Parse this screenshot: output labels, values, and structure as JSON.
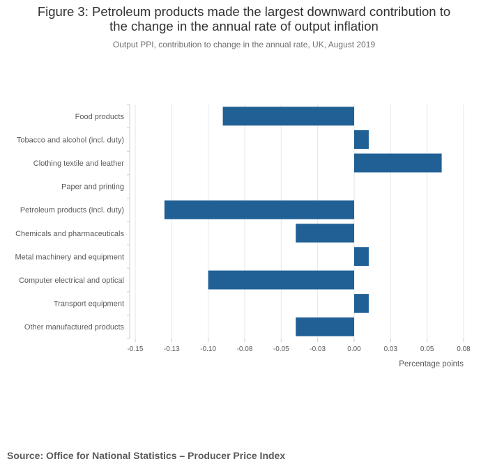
{
  "header": {
    "title_line1": "Figure 3: Petroleum products made the largest downward contribution to",
    "title_line2": "the change in the annual rate of output inflation",
    "subtitle": "Output PPI, contribution to change in the annual rate, UK, August 2019"
  },
  "chart_data": {
    "type": "bar",
    "orientation": "horizontal",
    "title": "Figure 3: Petroleum products made the largest downward contribution to the change in the annual rate of output inflation",
    "subtitle": "Output PPI, contribution to change in the annual rate, UK, August 2019",
    "categories": [
      "Food products",
      "Tobacco and alcohol (incl. duty)",
      "Clothing textile and leather",
      "Paper and printing",
      "Petroleum products (incl. duty)",
      "Chemicals and pharmaceuticals",
      "Metal machinery and equipment",
      "Computer electrical and optical",
      "Transport equipment",
      "Other manufactured products"
    ],
    "values": [
      -0.09,
      0.01,
      0.06,
      0.0,
      -0.13,
      -0.04,
      0.01,
      -0.1,
      0.01,
      -0.04
    ],
    "xlim": [
      -0.15,
      0.075
    ],
    "ticks": [
      -0.15,
      -0.125,
      -0.1,
      -0.075,
      -0.05,
      -0.025,
      0.0,
      0.025,
      0.05,
      0.075
    ],
    "tick_labels": [
      "-0.15",
      "-0.13",
      "-0.10",
      "-0.08",
      "-0.05",
      "-0.03",
      "0.00",
      "0.03",
      "0.05",
      "0.08"
    ],
    "xlabel": "Percentage points",
    "ylabel": "",
    "grid": true,
    "bar_color": "#206095",
    "gridline_color": "#e6e6e6"
  },
  "footer": {
    "source": "Source: Office for National Statistics – Producer Price Index"
  }
}
